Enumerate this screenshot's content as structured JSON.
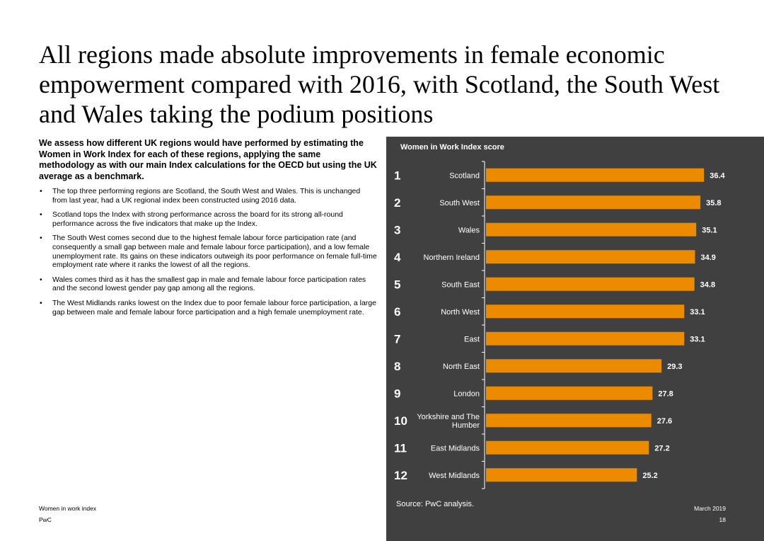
{
  "page": {
    "title": "All regions made absolute improvements in female economic empowerment compared with 2016, with Scotland, the South West and Wales taking the podium positions",
    "intro": "We assess how different UK regions would have performed by estimating the Women in Work Index for each of these regions, applying the same methodology as with our main Index calculations for the OECD but using the UK average as a benchmark.",
    "bullet_symbol": "•",
    "bullets": [
      "The top three performing regions are Scotland, the South West and Wales. This is unchanged from last year, had a UK regional index been constructed using 2016 data.",
      "Scotland tops the Index with strong performance across the board for its strong all-round performance across the five indicators that make up the Index.",
      "The South West comes second due to the highest female labour force participation rate (and consequently a small gap between male and female labour force participation), and a low female unemployment rate. Its gains on these indicators outweigh its poor performance on female full-time employment rate where it ranks the lowest of all the regions.",
      "Wales comes third as it has the smallest gap in male and female labour force participation rates and the second lowest gender pay gap among all the regions.",
      "The West Midlands ranks lowest on the Index due to poor female labour force participation, a large gap between male and female labour force participation and a high female unemployment rate."
    ],
    "footer": {
      "left_top": "Women in work index",
      "left_bottom": "PwC",
      "right_top": "March 2019",
      "right_bottom": "18"
    }
  },
  "chart_data": {
    "type": "bar",
    "orientation": "horizontal",
    "title": "Women in Work Index score",
    "source": "Source: PwC analysis.",
    "bar_color": "#ED8B00",
    "background_color": "#404040",
    "grid": false,
    "legend": "none",
    "xlim": [
      0,
      38.5
    ],
    "ranks": [
      "1",
      "2",
      "3",
      "4",
      "5",
      "6",
      "7",
      "8",
      "9",
      "10",
      "11",
      "12"
    ],
    "categories": [
      [
        "Scotland"
      ],
      [
        "South West"
      ],
      [
        "Wales"
      ],
      [
        "Northern Ireland"
      ],
      [
        "South East"
      ],
      [
        "North West"
      ],
      [
        "East"
      ],
      [
        "North East"
      ],
      [
        "London"
      ],
      [
        "Yorkshire and The",
        "Humber"
      ],
      [
        "East Midlands"
      ],
      [
        "West Midlands"
      ]
    ],
    "values": [
      36.4,
      35.8,
      35.1,
      34.9,
      34.8,
      33.1,
      33.1,
      29.3,
      27.8,
      27.6,
      27.2,
      25.2
    ],
    "value_labels": [
      "36.4",
      "35.8",
      "35.1",
      "34.9",
      "34.8",
      "33.1",
      "33.1",
      "29.3",
      "27.8",
      "27.6",
      "27.2",
      "25.2"
    ]
  }
}
